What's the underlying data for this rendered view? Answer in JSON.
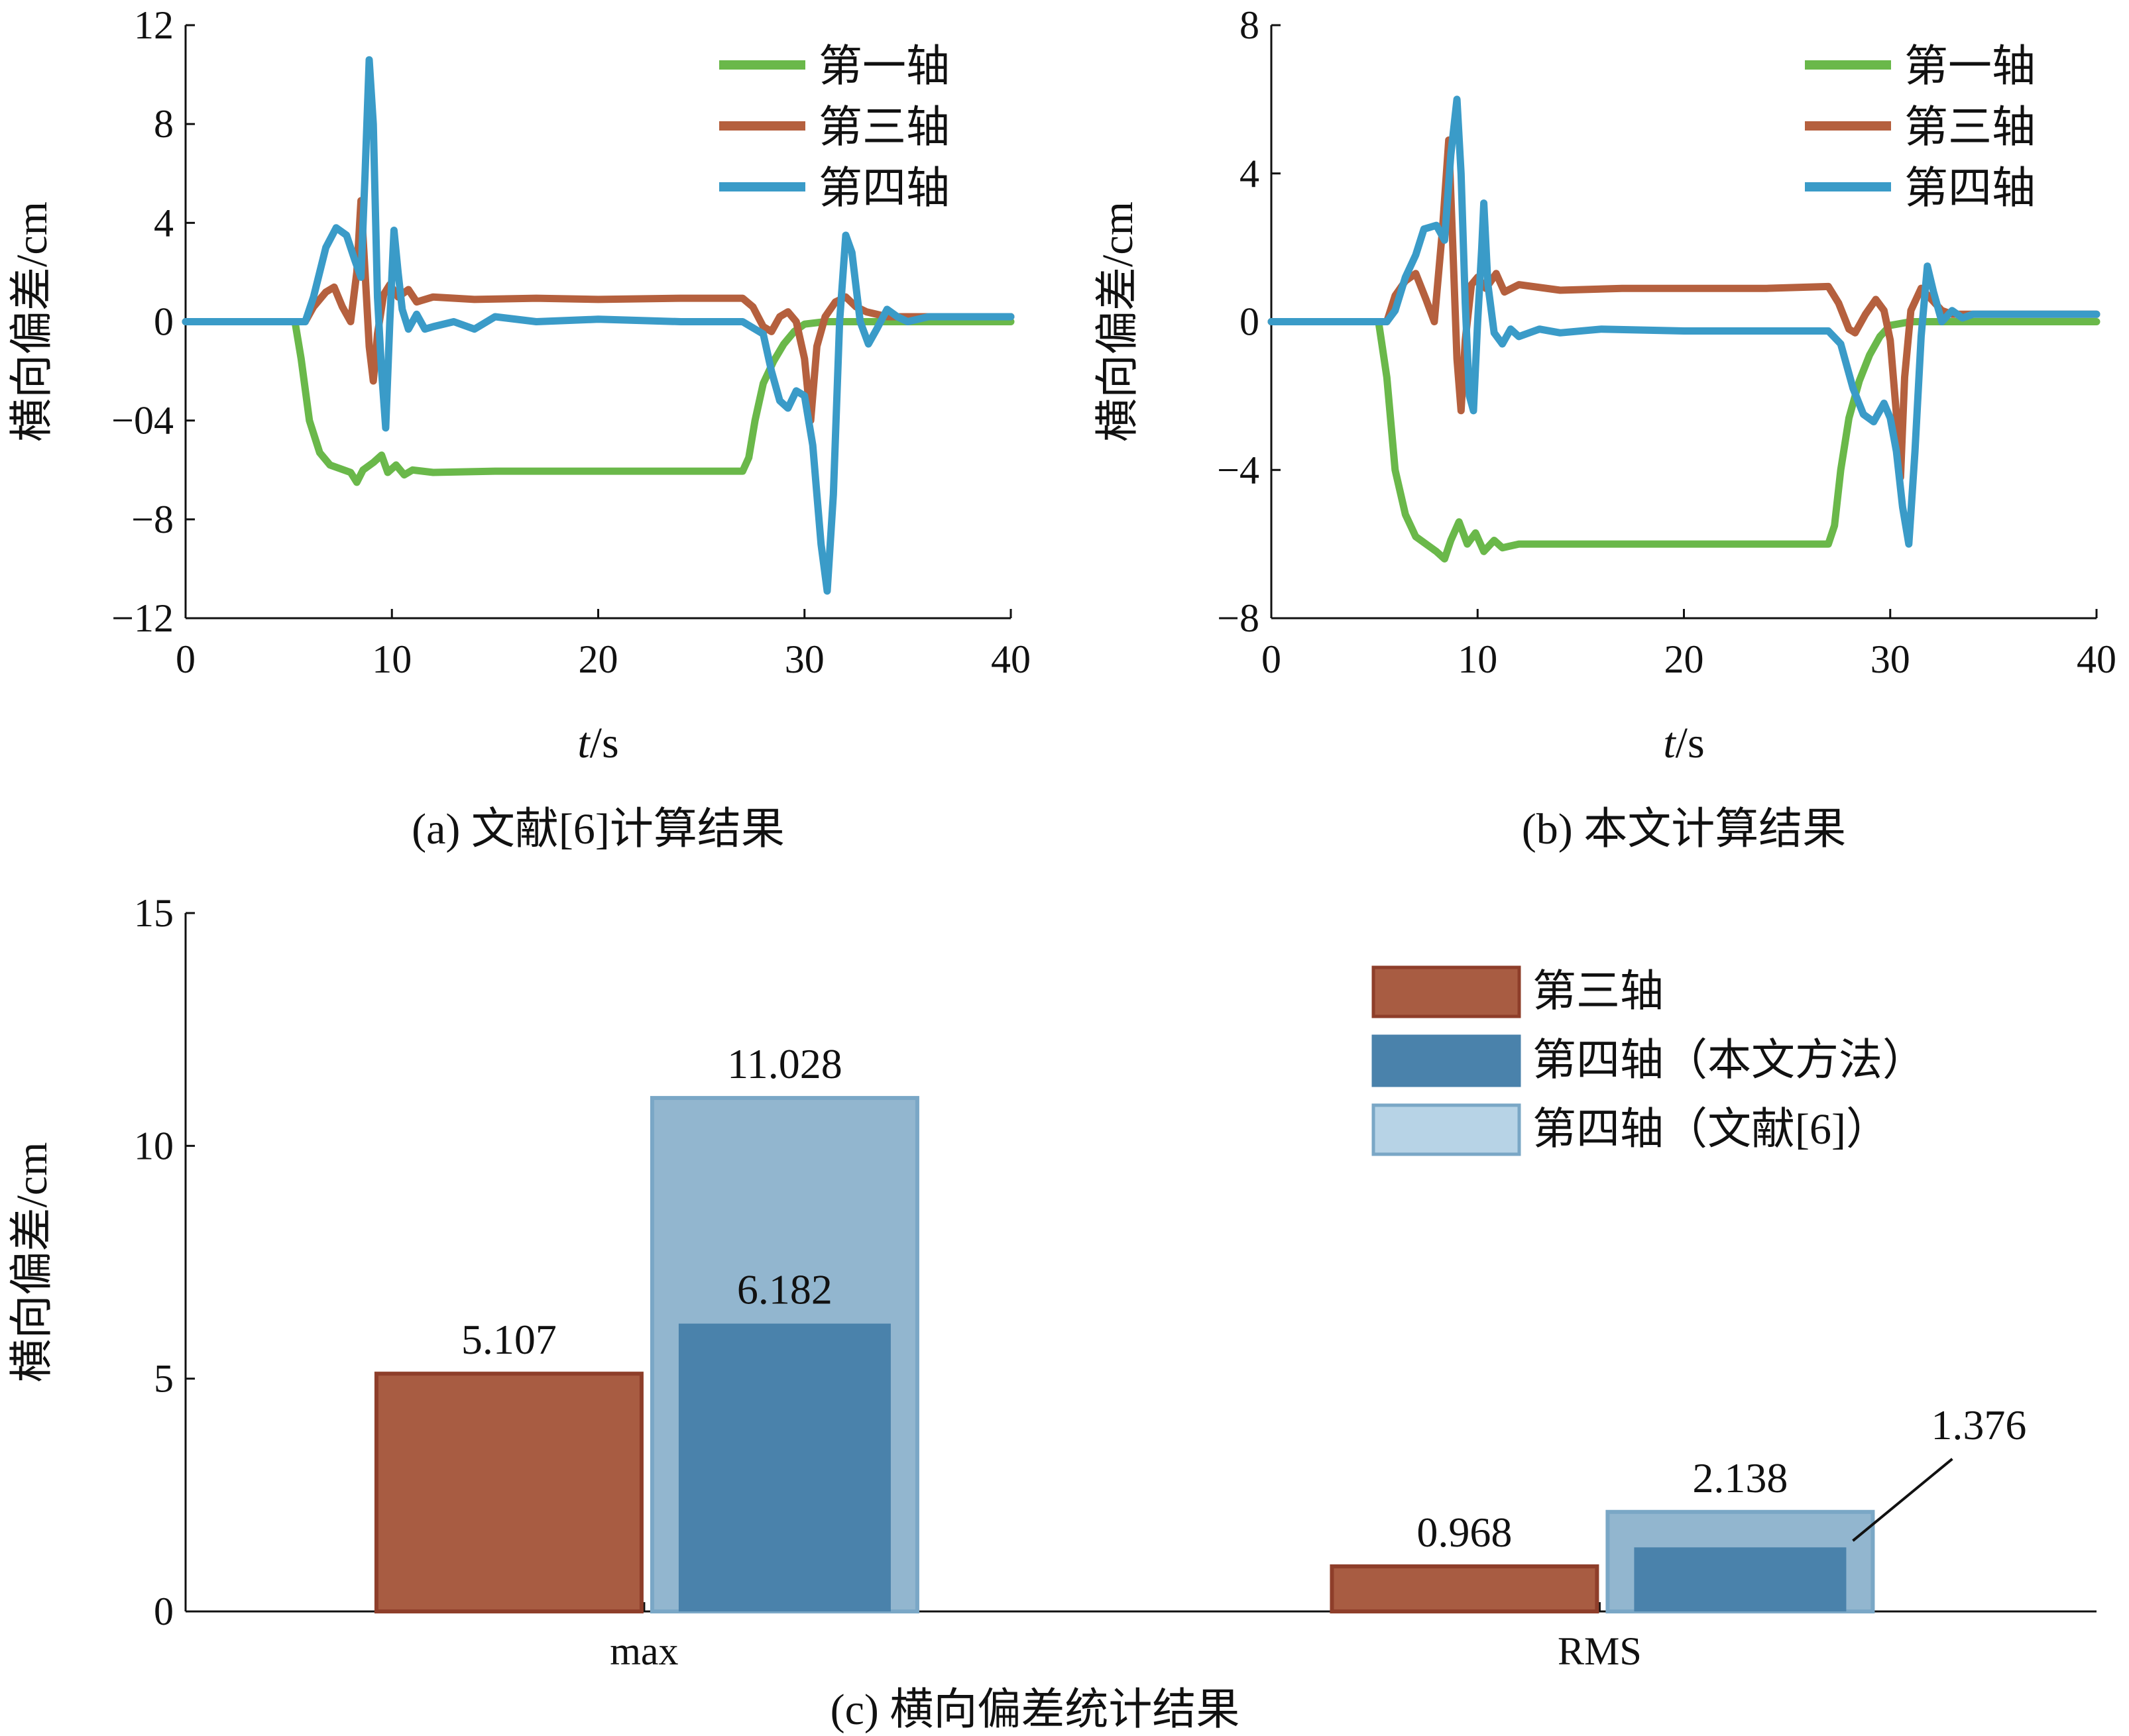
{
  "chart_data": [
    {
      "type": "line",
      "caption": "(a) 文献[6]计算结果",
      "xlabel_italic": "t",
      "xlabel_unit": "/s",
      "ylabel": "横向偏差/cm",
      "xlim": [
        0,
        40
      ],
      "ylim": [
        -12,
        12
      ],
      "xticks": [
        "0",
        "10",
        "20",
        "30",
        "40"
      ],
      "yticks": [
        "12",
        "8",
        "4",
        "0",
        "−04",
        "−8",
        "−12"
      ],
      "legend_position": "top-right",
      "series": [
        {
          "name": "第一轴",
          "color": "#6ab84a",
          "points": [
            [
              0,
              0
            ],
            [
              5.3,
              0
            ],
            [
              5.6,
              -1.5
            ],
            [
              6,
              -4
            ],
            [
              6.5,
              -5.3
            ],
            [
              7,
              -5.8
            ],
            [
              8,
              -6.1
            ],
            [
              8.3,
              -6.5
            ],
            [
              8.6,
              -6.0
            ],
            [
              9.1,
              -5.7
            ],
            [
              9.5,
              -5.4
            ],
            [
              9.8,
              -6.1
            ],
            [
              10.2,
              -5.8
            ],
            [
              10.6,
              -6.2
            ],
            [
              11,
              -6.0
            ],
            [
              12,
              -6.1
            ],
            [
              15,
              -6.05
            ],
            [
              20,
              -6.05
            ],
            [
              25,
              -6.05
            ],
            [
              27,
              -6.05
            ],
            [
              27.3,
              -5.5
            ],
            [
              27.6,
              -4.0
            ],
            [
              28,
              -2.5
            ],
            [
              28.5,
              -1.6
            ],
            [
              29,
              -0.9
            ],
            [
              29.5,
              -0.4
            ],
            [
              30,
              -0.1
            ],
            [
              31,
              0
            ],
            [
              40,
              0
            ]
          ]
        },
        {
          "name": "第三轴",
          "color": "#b5603e",
          "points": [
            [
              0,
              0
            ],
            [
              5.8,
              0
            ],
            [
              6.2,
              0.6
            ],
            [
              6.8,
              1.2
            ],
            [
              7.2,
              1.4
            ],
            [
              7.6,
              0.6
            ],
            [
              8.0,
              0.0
            ],
            [
              8.3,
              2.0
            ],
            [
              8.5,
              4.9
            ],
            [
              8.7,
              2.0
            ],
            [
              8.9,
              -1.0
            ],
            [
              9.1,
              -2.4
            ],
            [
              9.3,
              -0.5
            ],
            [
              9.6,
              1.1
            ],
            [
              9.9,
              1.5
            ],
            [
              10.3,
              1.0
            ],
            [
              10.8,
              1.3
            ],
            [
              11.2,
              0.8
            ],
            [
              12,
              1.0
            ],
            [
              14,
              0.9
            ],
            [
              17,
              0.95
            ],
            [
              20,
              0.9
            ],
            [
              24,
              0.95
            ],
            [
              27,
              0.95
            ],
            [
              27.5,
              0.6
            ],
            [
              28,
              -0.2
            ],
            [
              28.4,
              -0.4
            ],
            [
              28.8,
              0.2
            ],
            [
              29.2,
              0.4
            ],
            [
              29.6,
              0.0
            ],
            [
              30.0,
              -1.5
            ],
            [
              30.3,
              -4.0
            ],
            [
              30.6,
              -1.0
            ],
            [
              31.0,
              0.2
            ],
            [
              31.5,
              0.8
            ],
            [
              32,
              1.0
            ],
            [
              32.5,
              0.6
            ],
            [
              33,
              0.4
            ],
            [
              34,
              0.2
            ],
            [
              40,
              0.2
            ]
          ]
        },
        {
          "name": "第四轴",
          "color": "#3a9bc8",
          "points": [
            [
              0,
              0
            ],
            [
              5.8,
              0
            ],
            [
              6.2,
              1.0
            ],
            [
              6.8,
              3.0
            ],
            [
              7.3,
              3.8
            ],
            [
              7.8,
              3.5
            ],
            [
              8.2,
              2.5
            ],
            [
              8.5,
              1.8
            ],
            [
              8.7,
              6.0
            ],
            [
              8.9,
              10.6
            ],
            [
              9.1,
              8.0
            ],
            [
              9.3,
              1.0
            ],
            [
              9.5,
              -2.0
            ],
            [
              9.7,
              -4.3
            ],
            [
              9.9,
              0.0
            ],
            [
              10.1,
              3.7
            ],
            [
              10.3,
              2.0
            ],
            [
              10.5,
              0.5
            ],
            [
              10.8,
              -0.3
            ],
            [
              11.2,
              0.3
            ],
            [
              11.6,
              -0.3
            ],
            [
              12,
              -0.2
            ],
            [
              13,
              0.0
            ],
            [
              14,
              -0.3
            ],
            [
              15,
              0.2
            ],
            [
              17,
              0.0
            ],
            [
              20,
              0.1
            ],
            [
              24,
              0.0
            ],
            [
              27,
              0.0
            ],
            [
              28,
              -0.5
            ],
            [
              28.4,
              -2.0
            ],
            [
              28.8,
              -3.2
            ],
            [
              29.2,
              -3.5
            ],
            [
              29.6,
              -2.8
            ],
            [
              30.0,
              -3.0
            ],
            [
              30.4,
              -5.0
            ],
            [
              30.8,
              -9.0
            ],
            [
              31.1,
              -10.9
            ],
            [
              31.4,
              -7.0
            ],
            [
              31.7,
              0.0
            ],
            [
              32.0,
              3.5
            ],
            [
              32.3,
              2.8
            ],
            [
              32.7,
              0.0
            ],
            [
              33.1,
              -0.9
            ],
            [
              33.5,
              -0.3
            ],
            [
              34,
              0.5
            ],
            [
              34.5,
              0.2
            ],
            [
              35,
              0.0
            ],
            [
              36,
              0.2
            ],
            [
              40,
              0.2
            ]
          ]
        }
      ]
    },
    {
      "type": "line",
      "caption": "(b) 本文计算结果",
      "xlabel_italic": "t",
      "xlabel_unit": "/s",
      "ylabel": "横向偏差/cm",
      "xlim": [
        0,
        40
      ],
      "ylim": [
        -8,
        8
      ],
      "xticks": [
        "0",
        "10",
        "20",
        "30",
        "40"
      ],
      "yticks": [
        "8",
        "4",
        "0",
        "−4",
        "−8"
      ],
      "legend_position": "top-right",
      "series": [
        {
          "name": "第一轴",
          "color": "#6ab84a",
          "points": [
            [
              0,
              0
            ],
            [
              5.2,
              0
            ],
            [
              5.6,
              -1.5
            ],
            [
              6,
              -4
            ],
            [
              6.5,
              -5.2
            ],
            [
              7,
              -5.8
            ],
            [
              8,
              -6.2
            ],
            [
              8.4,
              -6.4
            ],
            [
              8.7,
              -5.9
            ],
            [
              9.1,
              -5.4
            ],
            [
              9.5,
              -6.0
            ],
            [
              9.9,
              -5.7
            ],
            [
              10.3,
              -6.2
            ],
            [
              10.8,
              -5.9
            ],
            [
              11.2,
              -6.1
            ],
            [
              12,
              -6.0
            ],
            [
              15,
              -6.0
            ],
            [
              20,
              -6.0
            ],
            [
              25,
              -6.0
            ],
            [
              27,
              -6.0
            ],
            [
              27.3,
              -5.5
            ],
            [
              27.6,
              -4.0
            ],
            [
              28,
              -2.6
            ],
            [
              28.5,
              -1.6
            ],
            [
              29,
              -0.9
            ],
            [
              29.5,
              -0.4
            ],
            [
              30,
              -0.1
            ],
            [
              31,
              0
            ],
            [
              40,
              0
            ]
          ]
        },
        {
          "name": "第三轴",
          "color": "#b5603e",
          "points": [
            [
              0,
              0
            ],
            [
              5.6,
              0
            ],
            [
              6.0,
              0.7
            ],
            [
              6.5,
              1.1
            ],
            [
              7.0,
              1.3
            ],
            [
              7.5,
              0.6
            ],
            [
              7.9,
              0.0
            ],
            [
              8.3,
              2.5
            ],
            [
              8.6,
              4.9
            ],
            [
              8.8,
              2.0
            ],
            [
              9.0,
              -1.0
            ],
            [
              9.2,
              -2.4
            ],
            [
              9.4,
              -0.5
            ],
            [
              9.7,
              1.0
            ],
            [
              10.0,
              1.2
            ],
            [
              10.4,
              0.9
            ],
            [
              10.9,
              1.3
            ],
            [
              11.3,
              0.8
            ],
            [
              12,
              1.0
            ],
            [
              14,
              0.85
            ],
            [
              17,
              0.9
            ],
            [
              20,
              0.9
            ],
            [
              24,
              0.9
            ],
            [
              27,
              0.95
            ],
            [
              27.5,
              0.5
            ],
            [
              28,
              -0.2
            ],
            [
              28.3,
              -0.3
            ],
            [
              28.8,
              0.2
            ],
            [
              29.3,
              0.6
            ],
            [
              29.7,
              0.3
            ],
            [
              30.0,
              -0.5
            ],
            [
              30.3,
              -2.5
            ],
            [
              30.5,
              -4.2
            ],
            [
              30.7,
              -1.5
            ],
            [
              31.0,
              0.3
            ],
            [
              31.5,
              0.9
            ],
            [
              32,
              0.6
            ],
            [
              32.5,
              0.3
            ],
            [
              33,
              0.2
            ],
            [
              34,
              0.2
            ],
            [
              40,
              0.2
            ]
          ]
        },
        {
          "name": "第四轴",
          "color": "#3a9bc8",
          "points": [
            [
              0,
              0
            ],
            [
              5.6,
              0
            ],
            [
              6.0,
              0.3
            ],
            [
              6.5,
              1.2
            ],
            [
              7.0,
              1.8
            ],
            [
              7.4,
              2.5
            ],
            [
              8.0,
              2.6
            ],
            [
              8.4,
              2.2
            ],
            [
              8.7,
              4.5
            ],
            [
              9.0,
              6.0
            ],
            [
              9.2,
              4.0
            ],
            [
              9.4,
              0.5
            ],
            [
              9.6,
              -2.0
            ],
            [
              9.8,
              -2.4
            ],
            [
              10.0,
              0.0
            ],
            [
              10.2,
              2.0
            ],
            [
              10.3,
              3.2
            ],
            [
              10.5,
              1.0
            ],
            [
              10.8,
              -0.3
            ],
            [
              11.2,
              -0.6
            ],
            [
              11.6,
              -0.2
            ],
            [
              12,
              -0.4
            ],
            [
              13,
              -0.2
            ],
            [
              14,
              -0.3
            ],
            [
              16,
              -0.2
            ],
            [
              20,
              -0.25
            ],
            [
              24,
              -0.25
            ],
            [
              27,
              -0.25
            ],
            [
              27.6,
              -0.6
            ],
            [
              28.2,
              -1.8
            ],
            [
              28.7,
              -2.5
            ],
            [
              29.2,
              -2.7
            ],
            [
              29.7,
              -2.2
            ],
            [
              30.0,
              -2.6
            ],
            [
              30.3,
              -3.5
            ],
            [
              30.6,
              -5.0
            ],
            [
              30.9,
              -6.0
            ],
            [
              31.2,
              -3.5
            ],
            [
              31.5,
              -0.4
            ],
            [
              31.8,
              1.5
            ],
            [
              32.1,
              0.8
            ],
            [
              32.5,
              0.0
            ],
            [
              33,
              0.3
            ],
            [
              33.5,
              0.1
            ],
            [
              34,
              0.2
            ],
            [
              40,
              0.2
            ]
          ]
        }
      ]
    },
    {
      "type": "bar",
      "caption": "(c) 横向偏差统计结果",
      "ylabel": "横向偏差/cm",
      "ylim": [
        0,
        15
      ],
      "yticks": [
        "15",
        "10",
        "5",
        "0"
      ],
      "categories": [
        "max",
        "RMS"
      ],
      "legend_position": "top-right",
      "series": [
        {
          "name": "第三轴",
          "color": "#a85c42",
          "values": [
            5.107,
            0.968
          ],
          "labels": [
            "5.107",
            "0.968"
          ]
        },
        {
          "name": "第四轴（本文方法）",
          "color": "#4a82ab",
          "values": [
            6.182,
            1.376
          ],
          "labels": [
            "6.182",
            "1.376"
          ]
        },
        {
          "name": "第四轴（文献[6]）",
          "color": "#92b6cf",
          "values": [
            11.028,
            2.138
          ],
          "labels": [
            "11.028",
            "2.138"
          ]
        }
      ]
    }
  ]
}
